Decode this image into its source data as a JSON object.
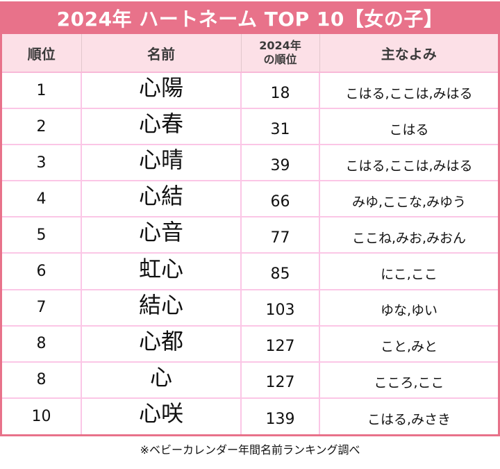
{
  "title": "2024年 ハートネーム TOP 10【女の子】",
  "headers": {
    "rank": "順位",
    "name": "名前",
    "prev_rank_line1": "2024年",
    "prev_rank_line2": "の順位",
    "reading": "主なよみ"
  },
  "rows": [
    {
      "rank": "1",
      "name": "心陽",
      "prev_rank": "18",
      "reading": "こはる,ここは,みはる"
    },
    {
      "rank": "2",
      "name": "心春",
      "prev_rank": "31",
      "reading": "こはる"
    },
    {
      "rank": "3",
      "name": "心晴",
      "prev_rank": "39",
      "reading": "こはる,ここは,みはる"
    },
    {
      "rank": "4",
      "name": "心結",
      "prev_rank": "66",
      "reading": "みゆ,ここな,みゆう"
    },
    {
      "rank": "5",
      "name": "心音",
      "prev_rank": "77",
      "reading": "ここね,みお,みおん"
    },
    {
      "rank": "6",
      "name": "虹心",
      "prev_rank": "85",
      "reading": "にこ,ここ"
    },
    {
      "rank": "7",
      "name": "結心",
      "prev_rank": "103",
      "reading": "ゆな,ゆい"
    },
    {
      "rank": "8",
      "name": "心都",
      "prev_rank": "127",
      "reading": "こと,みと"
    },
    {
      "rank": "8",
      "name": "心",
      "prev_rank": "127",
      "reading": "こころ,ここ"
    },
    {
      "rank": "10",
      "name": "心咲",
      "prev_rank": "139",
      "reading": "こはる,みさき"
    }
  ],
  "footnote": "※ベビーカレンダー年間名前ランキング調べ",
  "colors": {
    "accent": "#e8728a",
    "header_bg": "#fce0e7",
    "grid_line": "#fbc6e6"
  }
}
